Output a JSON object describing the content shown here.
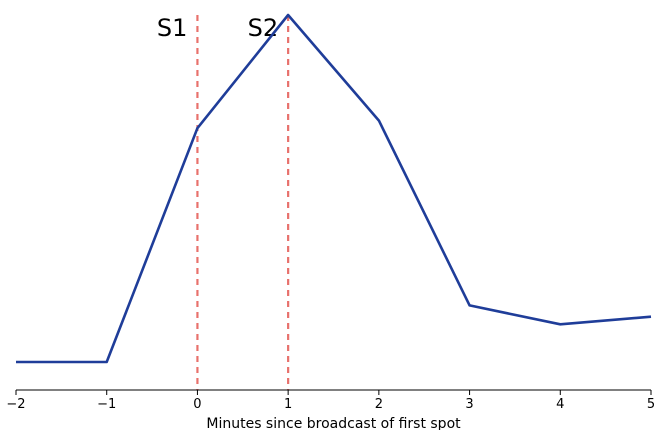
{
  "chart_data": {
    "type": "line",
    "title": "",
    "xlabel": "Minutes since broadcast of first spot",
    "ylabel": "",
    "xlim": [
      -2,
      5
    ],
    "xticks": [
      -2,
      -1,
      0,
      1,
      2,
      3,
      4,
      5
    ],
    "xtick_labels": [
      "−2",
      "−1",
      "0",
      "1",
      "2",
      "3",
      "4",
      "5"
    ],
    "grid": false,
    "series": [
      {
        "x": [
          -2,
          -1,
          0,
          1,
          2,
          3,
          4,
          5
        ],
        "y": [
          0.08,
          0.08,
          0.7,
          1.0,
          0.72,
          0.23,
          0.18,
          0.2
        ],
        "color": "#1f3d99"
      }
    ],
    "markers": [
      {
        "label": "S1",
        "x": 0,
        "color": "#e8716c",
        "style": "dashed"
      },
      {
        "label": "S2",
        "x": 1,
        "color": "#e8716c",
        "style": "dashed"
      }
    ]
  }
}
